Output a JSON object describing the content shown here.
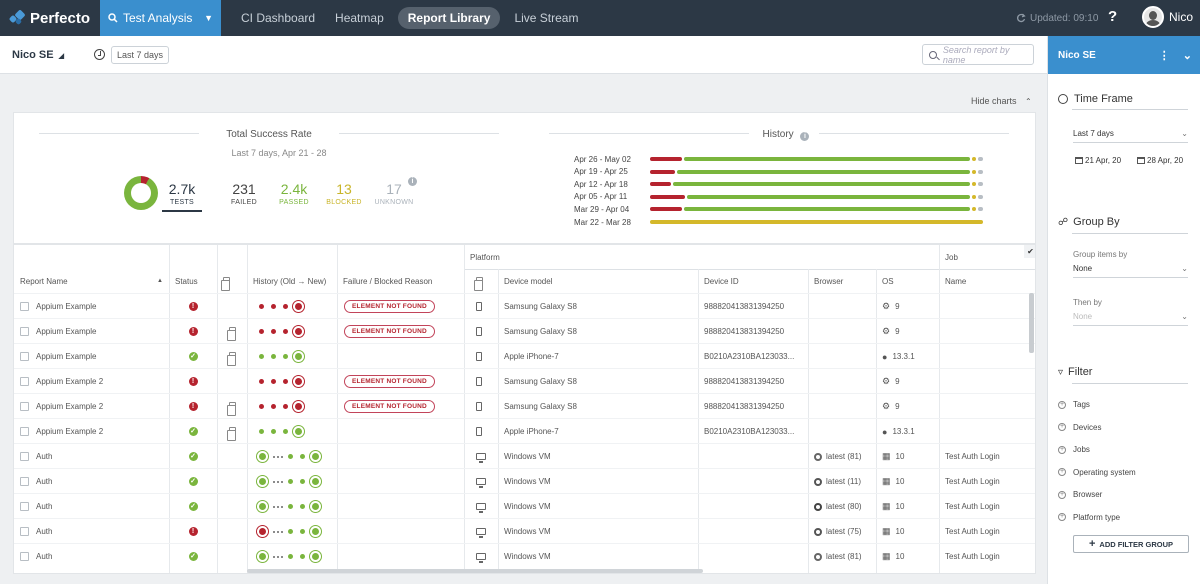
{
  "app": {
    "name": "Perfecto"
  },
  "nav": {
    "active": "Test Analysis",
    "links": [
      "CI Dashboard",
      "Heatmap",
      "Report Library",
      "Live Stream"
    ],
    "updated": "Updated: 09:10",
    "help": "?",
    "user": "Nico"
  },
  "subbar": {
    "workspace": "Nico SE",
    "timeframe": "Last 7 days",
    "search_placeholder": "Search report by name"
  },
  "charts_toggle": "Hide charts",
  "success": {
    "title": "Total Success Rate",
    "subtitle": "Last 7 days, Apr 21 - 28",
    "stats": [
      {
        "num": "2.7k",
        "label": "TESTS",
        "color": "#2c3845"
      },
      {
        "num": "231",
        "label": "FAILED",
        "color": "#444444"
      },
      {
        "num": "2.4k",
        "label": "PASSED",
        "color": "#7ab53d"
      },
      {
        "num": "13",
        "label": "BLOCKED",
        "color": "#c9b52a"
      },
      {
        "num": "17",
        "label": "UNKNOWN",
        "color": "#aab2ba"
      }
    ],
    "info": "i"
  },
  "history": {
    "title": "History",
    "rows": [
      {
        "label": "Apr 26 - May 02",
        "failed": 0.1,
        "passed": 0.86,
        "blocked": 0.02,
        "unknown": 0.02
      },
      {
        "label": "Apr 19 - Apr 25",
        "failed": 0.08,
        "passed": 0.88,
        "blocked": 0.02,
        "unknown": 0.02
      },
      {
        "label": "Apr 12 - Apr 18",
        "failed": 0.07,
        "passed": 0.89,
        "blocked": 0.02,
        "unknown": 0.02
      },
      {
        "label": "Apr 05 - Apr 11",
        "failed": 0.11,
        "passed": 0.85,
        "blocked": 0.02,
        "unknown": 0.02
      },
      {
        "label": "Mar 29 - Apr 04",
        "failed": 0.1,
        "passed": 0.86,
        "blocked": 0.02,
        "unknown": 0.02
      },
      {
        "label": "Mar 22 - Mar 28",
        "failed": 0.0,
        "passed": 0.0,
        "blocked": 1.0,
        "unknown": 0.0
      }
    ]
  },
  "table": {
    "groups": {
      "platform": "Platform",
      "job": "Job"
    },
    "headers": {
      "name": "Report Name",
      "status": "Status",
      "history": "History (Old → New)",
      "failure": "Failure / Blocked Reason",
      "device": "Device model",
      "device_id": "Device ID",
      "browser": "Browser",
      "os": "OS",
      "job_name": "Name"
    },
    "rows": [
      {
        "name": "Appium Example",
        "status": "fail",
        "report": false,
        "hist": "ffff",
        "reason": "ELEMENT NOT FOUND",
        "dtype": "mobile",
        "device": "Samsung Galaxy S8",
        "device_id": "988820413831394250",
        "browser": "",
        "os_icon": "android",
        "os": "9",
        "job": ""
      },
      {
        "name": "Appium Example",
        "status": "fail",
        "report": true,
        "hist": "ffff",
        "reason": "ELEMENT NOT FOUND",
        "dtype": "mobile",
        "device": "Samsung Galaxy S8",
        "device_id": "988820413831394250",
        "browser": "",
        "os_icon": "android",
        "os": "9",
        "job": ""
      },
      {
        "name": "Appium Example",
        "status": "pass",
        "report": true,
        "hist": "pppp",
        "reason": "",
        "dtype": "mobile",
        "device": "Apple iPhone-7",
        "device_id": "B0210A2310BA123033...",
        "browser": "",
        "os_icon": "apple",
        "os": "13.3.1",
        "job": ""
      },
      {
        "name": "Appium Example 2",
        "status": "fail",
        "report": false,
        "hist": "ffff",
        "reason": "ELEMENT NOT FOUND",
        "dtype": "mobile",
        "device": "Samsung Galaxy S8",
        "device_id": "988820413831394250",
        "browser": "",
        "os_icon": "android",
        "os": "9",
        "job": ""
      },
      {
        "name": "Appium Example 2",
        "status": "fail",
        "report": true,
        "hist": "ffff",
        "reason": "ELEMENT NOT FOUND",
        "dtype": "mobile",
        "device": "Samsung Galaxy S8",
        "device_id": "988820413831394250",
        "browser": "",
        "os_icon": "android",
        "os": "9",
        "job": ""
      },
      {
        "name": "Appium Example 2",
        "status": "pass",
        "report": true,
        "hist": "pppp",
        "reason": "",
        "dtype": "mobile",
        "device": "Apple iPhone-7",
        "device_id": "B0210A2310BA123033...",
        "browser": "",
        "os_icon": "apple",
        "os": "13.3.1",
        "job": ""
      },
      {
        "name": "Auth",
        "status": "pass",
        "report": false,
        "hist": "p-ppp",
        "reason": "",
        "dtype": "desktop",
        "device": "Windows VM",
        "device_id": "",
        "browser_icon": "chrome",
        "browser": "latest (81)",
        "os_icon": "windows",
        "os": "10",
        "job": "Test Auth Login"
      },
      {
        "name": "Auth",
        "status": "pass",
        "report": false,
        "hist": "p-ppp",
        "reason": "",
        "dtype": "desktop",
        "device": "Windows VM",
        "device_id": "",
        "browser_icon": "ie",
        "browser": "latest (11)",
        "os_icon": "windows",
        "os": "10",
        "job": "Test Auth Login"
      },
      {
        "name": "Auth",
        "status": "pass",
        "report": false,
        "hist": "p-ppp",
        "reason": "",
        "dtype": "desktop",
        "device": "Windows VM",
        "device_id": "",
        "browser_icon": "edge",
        "browser": "latest (80)",
        "os_icon": "windows",
        "os": "10",
        "job": "Test Auth Login"
      },
      {
        "name": "Auth",
        "status": "fail",
        "report": false,
        "hist": "f-ppp",
        "reason": "",
        "dtype": "desktop",
        "device": "Windows VM",
        "device_id": "",
        "browser_icon": "firefox",
        "browser": "latest (75)",
        "os_icon": "windows",
        "os": "10",
        "job": "Test Auth Login"
      },
      {
        "name": "Auth",
        "status": "pass",
        "report": false,
        "hist": "p-ppp",
        "reason": "",
        "dtype": "desktop",
        "device": "Windows VM",
        "device_id": "",
        "browser_icon": "chrome",
        "browser": "latest (81)",
        "os_icon": "windows",
        "os": "10",
        "job": "Test Auth Login"
      }
    ]
  },
  "sidepanel": {
    "title": "Nico SE",
    "timeframe": {
      "title": "Time Frame",
      "value": "Last 7 days",
      "from": "21 Apr, 20",
      "to": "28 Apr, 20"
    },
    "groupby": {
      "title": "Group By",
      "items_label": "Group items by",
      "items_value": "None",
      "then_label": "Then by",
      "then_value": "None"
    },
    "filter": {
      "title": "Filter",
      "items": [
        "Tags",
        "Devices",
        "Jobs",
        "Operating system",
        "Browser",
        "Platform type"
      ],
      "add_button": "ADD FILTER GROUP"
    }
  },
  "colors": {
    "accent": "#3a8fce",
    "nav_bg": "#2c3845",
    "failed": "#b5232e",
    "passed": "#7ab53d",
    "blocked": "#d4b82a",
    "unknown": "#b8bec4"
  }
}
